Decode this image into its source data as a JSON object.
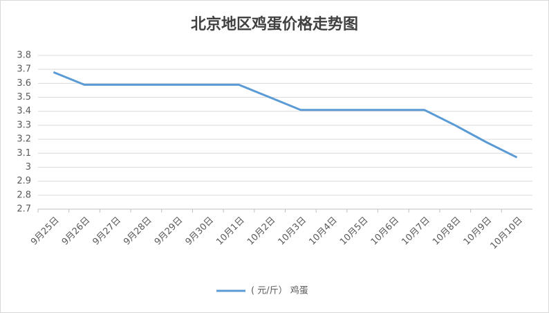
{
  "chart_data": {
    "type": "line",
    "title": "北京地区鸡蛋价格走势图",
    "categories": [
      "9月25日",
      "9月26日",
      "9月27日",
      "9月28日",
      "9月29日",
      "9月30日",
      "10月1日",
      "10月2日",
      "10月3日",
      "10月4日",
      "10月5日",
      "10月6日",
      "10月7日",
      "10月8日",
      "10月9日",
      "10月10日"
    ],
    "series": [
      {
        "name": "( 元/斤） 鸡蛋",
        "color": "#5b9bd5",
        "values": [
          3.68,
          3.59,
          3.59,
          3.59,
          3.59,
          3.59,
          3.59,
          3.5,
          3.41,
          3.41,
          3.41,
          3.41,
          3.41,
          3.3,
          3.18,
          3.07
        ]
      }
    ],
    "ylim": [
      2.7,
      3.8
    ],
    "yticks": [
      2.7,
      2.8,
      2.9,
      3,
      3.1,
      3.2,
      3.3,
      3.4,
      3.5,
      3.6,
      3.7,
      3.8
    ],
    "grid": true,
    "legend": "bottom"
  }
}
